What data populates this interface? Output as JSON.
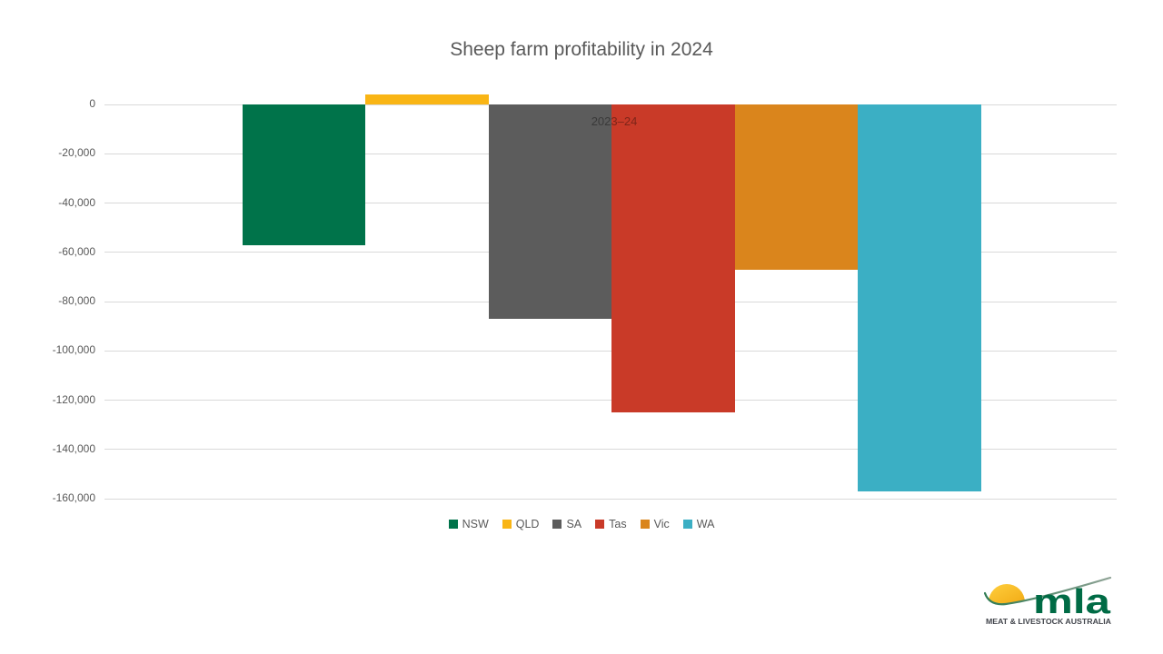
{
  "chart_data": {
    "type": "bar",
    "title": "Sheep farm profitability in 2024",
    "category": "2023–24",
    "xlabel": "",
    "ylabel": "",
    "categories": [
      "2023–24"
    ],
    "series": [
      {
        "name": "NSW",
        "value": -57000,
        "color": "#00734A"
      },
      {
        "name": "QLD",
        "value": 4000,
        "color": "#F9B515"
      },
      {
        "name": "SA",
        "value": -87000,
        "color": "#5C5C5C"
      },
      {
        "name": "Tas",
        "value": -125000,
        "color": "#C93A28"
      },
      {
        "name": "Vic",
        "value": -67000,
        "color": "#DA851C"
      },
      {
        "name": "WA",
        "value": -157000,
        "color": "#3BAFC4"
      }
    ],
    "ylim": [
      -160000,
      5000
    ],
    "ytick_step": 20000,
    "ytick_labels": [
      "0",
      "-20,000",
      "-40,000",
      "-60,000",
      "-80,000",
      "-100,000",
      "-120,000",
      "-140,000",
      "-160,000"
    ],
    "grid": true,
    "legend_position": "bottom"
  },
  "colors": {
    "gridline": "#d9d9d9",
    "axis_text": "#595959",
    "title_text": "#595959"
  },
  "logo": {
    "text": "mla",
    "caption": "MEAT & LIVESTOCK AUSTRALIA",
    "green": "#006B45",
    "sun_top": "#FFCF3E",
    "sun_bottom": "#EFA30C"
  }
}
